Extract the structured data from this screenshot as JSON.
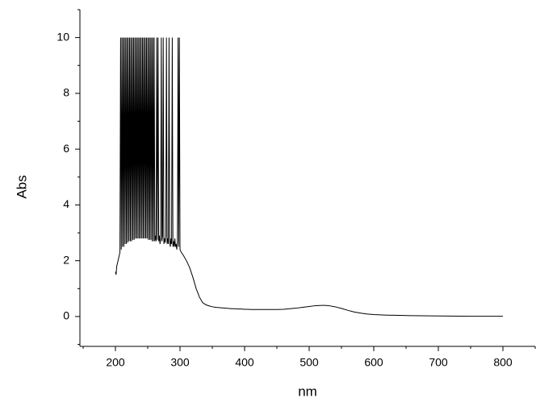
{
  "chart_data": {
    "type": "line",
    "xlabel": "nm",
    "ylabel": "Abs",
    "x": [
      200,
      201,
      202,
      203,
      204,
      205,
      206,
      207,
      208,
      209,
      210,
      211,
      212,
      213,
      214,
      215,
      216,
      217,
      218,
      219,
      220,
      221,
      222,
      223,
      224,
      225,
      226,
      227,
      228,
      229,
      230,
      231,
      232,
      233,
      234,
      235,
      236,
      237,
      238,
      239,
      240,
      241,
      242,
      243,
      244,
      245,
      246,
      247,
      248,
      249,
      250,
      251,
      252,
      253,
      254,
      255,
      256,
      257,
      258,
      259,
      260,
      261,
      262,
      263,
      264,
      265,
      266,
      267,
      268,
      269,
      270,
      271,
      272,
      273,
      274,
      275,
      276,
      277,
      278,
      279,
      280,
      281,
      282,
      283,
      284,
      285,
      286,
      287,
      288,
      289,
      290,
      291,
      292,
      293,
      294,
      295,
      296,
      297,
      298,
      299,
      300,
      302,
      305,
      310,
      315,
      320,
      325,
      330,
      335,
      340,
      345,
      350,
      355,
      360,
      365,
      370,
      375,
      380,
      385,
      390,
      395,
      400,
      405,
      410,
      415,
      420,
      425,
      430,
      435,
      440,
      445,
      450,
      460,
      470,
      480,
      490,
      500,
      510,
      520,
      525,
      530,
      540,
      550,
      560,
      570,
      580,
      590,
      600,
      620,
      640,
      660,
      700,
      750,
      800
    ],
    "values": [
      1.6,
      1.5,
      1.8,
      1.9,
      2.0,
      2.1,
      2.2,
      2.3,
      10,
      2.4,
      10,
      2.5,
      10,
      2.5,
      10,
      2.6,
      10,
      2.6,
      10,
      2.65,
      10,
      2.7,
      10,
      2.7,
      10,
      2.7,
      10,
      2.75,
      10,
      2.75,
      10,
      2.8,
      10,
      2.8,
      10,
      2.8,
      10,
      2.8,
      10,
      2.8,
      10,
      2.8,
      10,
      2.8,
      10,
      2.8,
      10,
      2.8,
      10,
      2.8,
      10,
      2.75,
      10,
      2.75,
      10,
      2.75,
      10,
      2.7,
      10,
      2.7,
      10,
      2.7,
      2.9,
      2.7,
      10,
      2.75,
      10,
      2.7,
      2.9,
      2.6,
      2.8,
      10,
      2.7,
      2.9,
      10,
      2.6,
      2.8,
      2.65,
      2.9,
      10,
      2.6,
      2.8,
      2.6,
      10,
      2.7,
      2.5,
      2.8,
      2.6,
      10,
      2.5,
      2.7,
      2.5,
      2.8,
      2.5,
      2.6,
      2.4,
      2.7,
      10,
      2.5,
      10,
      2.4,
      2.3,
      2.2,
      2.0,
      1.75,
      1.4,
      1.0,
      0.7,
      0.5,
      0.42,
      0.38,
      0.35,
      0.33,
      0.32,
      0.31,
      0.3,
      0.29,
      0.28,
      0.28,
      0.27,
      0.27,
      0.26,
      0.26,
      0.25,
      0.25,
      0.25,
      0.25,
      0.25,
      0.25,
      0.25,
      0.25,
      0.25,
      0.26,
      0.28,
      0.3,
      0.33,
      0.36,
      0.39,
      0.4,
      0.4,
      0.39,
      0.35,
      0.29,
      0.22,
      0.16,
      0.12,
      0.09,
      0.07,
      0.05,
      0.04,
      0.03,
      0.02,
      0.01,
      0.01
    ],
    "color": "#000000",
    "xlim": [
      145,
      850
    ],
    "ylim": [
      -1.07,
      11
    ],
    "xticks": [
      200,
      300,
      400,
      500,
      600,
      700,
      800
    ],
    "yticks": [
      0,
      2,
      4,
      6,
      8,
      10
    ],
    "xminorticks": [
      150,
      250,
      350,
      450,
      550,
      650,
      750,
      850
    ],
    "yminorticks": [
      -1,
      1,
      3,
      5,
      7,
      9,
      11
    ]
  }
}
